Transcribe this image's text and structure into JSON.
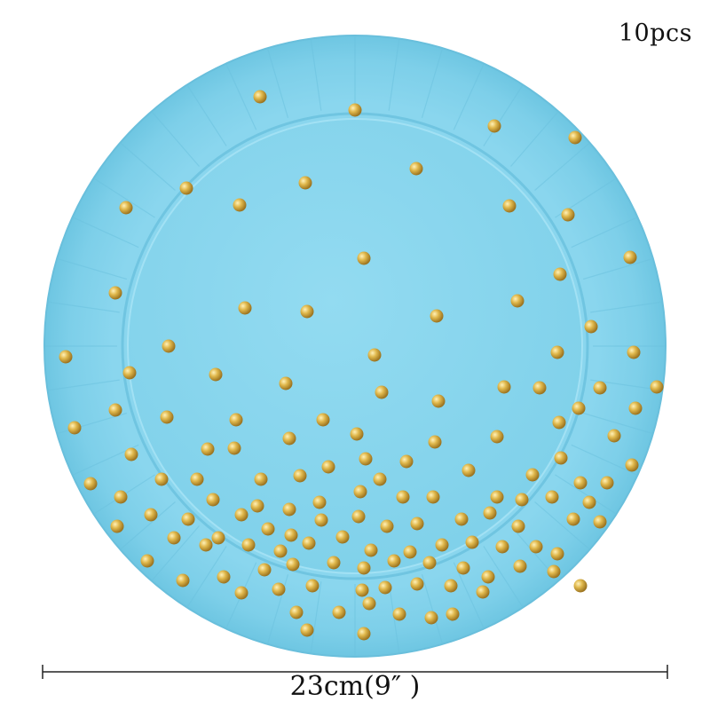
{
  "product": {
    "quantity_label": "10pcs",
    "size_label": "23cm(9″ )",
    "plate_color": "#7ed0ea",
    "dot_color": "#d9b24a"
  },
  "icons": {
    "plate": "round-paper-plate-icon",
    "dimension_line": "dimension-arrow-icon"
  }
}
